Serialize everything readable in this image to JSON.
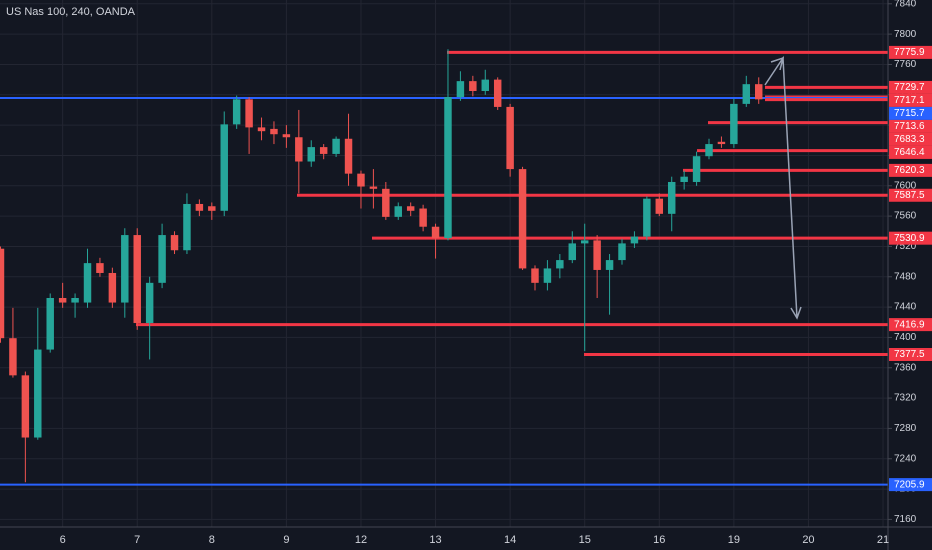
{
  "chart_data": {
    "type": "candlestick",
    "title": "US Nas 100, 240, OANDA",
    "up_color": "#26a69a",
    "down_color": "#ef5350",
    "open": [
      7517,
      7399,
      7350,
      7268,
      7384,
      7452,
      7446,
      7446,
      7498,
      7485,
      7446,
      7535,
      7419,
      7472,
      7535,
      7515,
      7576,
      7573,
      7567,
      7681,
      7714,
      7677,
      7675,
      7668,
      7664,
      7632,
      7651,
      7642,
      7662,
      7616,
      7599,
      7596,
      7559,
      7573,
      7570,
      7546,
      7531,
      7717,
      7738,
      7725,
      7740,
      7704,
      7622,
      7491,
      7472,
      7491,
      7502,
      7524,
      7528,
      7489,
      7502,
      7524,
      7533,
      7583,
      7563,
      7605,
      7605,
      7639,
      7658,
      7655,
      7708,
      7734
    ],
    "high": [
      7520,
      7439,
      7355,
      7439,
      7458,
      7472,
      7458,
      7517,
      7505,
      7492,
      7544,
      7544,
      7480,
      7550,
      7540,
      7590,
      7582,
      7578,
      7698,
      7719,
      7717,
      7690,
      7685,
      7680,
      7700,
      7660,
      7655,
      7665,
      7695,
      7620,
      7622,
      7605,
      7578,
      7578,
      7575,
      7550,
      7780,
      7751,
      7745,
      7753,
      7743,
      7708,
      7625,
      7495,
      7502,
      7510,
      7540,
      7550,
      7535,
      7510,
      7530,
      7540,
      7586,
      7590,
      7612,
      7620,
      7645,
      7662,
      7665,
      7715,
      7745,
      7743
    ],
    "low": [
      7393,
      7347,
      7209,
      7265,
      7380,
      7439,
      7426,
      7439,
      7480,
      7439,
      7426,
      7410,
      7371,
      7465,
      7510,
      7510,
      7560,
      7555,
      7560,
      7675,
      7642,
      7660,
      7655,
      7650,
      7590,
      7625,
      7635,
      7638,
      7600,
      7570,
      7570,
      7555,
      7555,
      7560,
      7540,
      7504,
      7528,
      7712,
      7718,
      7720,
      7700,
      7612,
      7489,
      7462,
      7462,
      7478,
      7498,
      7382,
      7452,
      7430,
      7496,
      7518,
      7528,
      7560,
      7540,
      7595,
      7600,
      7635,
      7650,
      7650,
      7704,
      7708
    ],
    "close": [
      7399,
      7350,
      7268,
      7384,
      7452,
      7446,
      7452,
      7498,
      7485,
      7446,
      7535,
      7419,
      7472,
      7535,
      7515,
      7576,
      7567,
      7567,
      7681,
      7714,
      7677,
      7672,
      7668,
      7664,
      7632,
      7651,
      7642,
      7662,
      7616,
      7599,
      7596,
      7559,
      7573,
      7567,
      7546,
      7531,
      7717,
      7738,
      7725,
      7740,
      7704,
      7622,
      7491,
      7472,
      7491,
      7502,
      7524,
      7528,
      7489,
      7502,
      7524,
      7533,
      7583,
      7563,
      7605,
      7612,
      7639,
      7655,
      7655,
      7708,
      7734,
      7714
    ],
    "xlim": [
      -0.04,
      71.4
    ],
    "xticks": [
      {
        "value": 5,
        "label": "6"
      },
      {
        "value": 11,
        "label": "7"
      },
      {
        "value": 17,
        "label": "8"
      },
      {
        "value": 23,
        "label": "9"
      },
      {
        "value": 29,
        "label": "12"
      },
      {
        "value": 35,
        "label": "13"
      },
      {
        "value": 41,
        "label": "14"
      },
      {
        "value": 47,
        "label": "15"
      },
      {
        "value": 53,
        "label": "16"
      },
      {
        "value": 59,
        "label": "19"
      },
      {
        "value": 65,
        "label": "20"
      },
      {
        "value": 71,
        "label": "21"
      }
    ],
    "ylim": [
      7150,
      7845
    ],
    "yticks": [
      7160,
      7200,
      7240,
      7280,
      7320,
      7360,
      7400,
      7440,
      7480,
      7520,
      7560,
      7600,
      7640,
      7680,
      7720,
      7760,
      7800,
      7840
    ],
    "grid": true,
    "levels": [
      {
        "value": 7775.9,
        "color": "#f23645"
      },
      {
        "value": 7729.7,
        "color": "#f23645"
      },
      {
        "value": 7717.1,
        "color": "#f23645"
      },
      {
        "value": 7715.7,
        "color": "#2962ff"
      },
      {
        "value": 7713.6,
        "color": "#f23645"
      },
      {
        "value": 7683.3,
        "color": "#f23645"
      },
      {
        "value": 7646.4,
        "color": "#f23645"
      },
      {
        "value": 7620.3,
        "color": "#f23645"
      },
      {
        "value": 7587.5,
        "color": "#f23645"
      },
      {
        "value": 7530.9,
        "color": "#f23645"
      },
      {
        "value": 7416.9,
        "color": "#f23645"
      },
      {
        "value": 7377.5,
        "color": "#f23645"
      },
      {
        "value": 7205.9,
        "color": "#2962ff"
      }
    ]
  }
}
